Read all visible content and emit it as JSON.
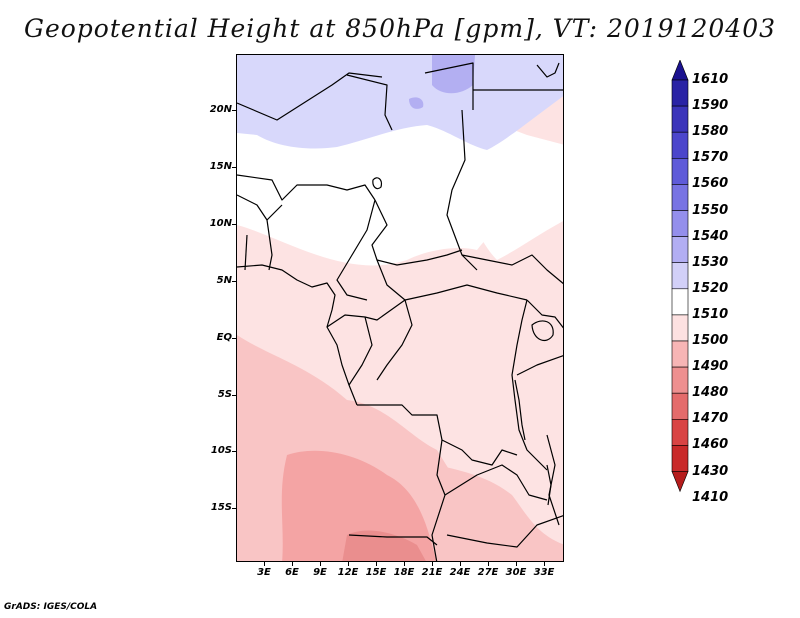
{
  "title": "Geopotential Height at 850hPa [gpm], VT: 2019120403",
  "footer": "GrADS: IGES/COLA",
  "map": {
    "latitude_labels": [
      "20N",
      "15N",
      "10N",
      "5N",
      "EQ",
      "5S",
      "10S",
      "15S"
    ],
    "longitude_labels": [
      "3E",
      "6E",
      "9E",
      "12E",
      "15E",
      "18E",
      "21E",
      "24E",
      "27E",
      "30E",
      "33E"
    ]
  },
  "legend": {
    "levels": [
      "1610",
      "1590",
      "1580",
      "1570",
      "1560",
      "1550",
      "1540",
      "1530",
      "1520",
      "1510",
      "1500",
      "1490",
      "1480",
      "1470",
      "1460",
      "1430",
      "1410"
    ],
    "colors": [
      "#1b128f",
      "#2a23a5",
      "#3b34ba",
      "#4c46cc",
      "#5f5bd9",
      "#7873e3",
      "#948fec",
      "#b2aef3",
      "#d2d0f8",
      "#ffffff",
      "#fde1e1",
      "#f7b5b5",
      "#ee9090",
      "#e46b6b",
      "#d94444",
      "#c92a2a",
      "#b51c1c"
    ]
  },
  "colors": {
    "blue_high": "#d8d8fb",
    "blue_higher": "#b3aff2",
    "neutral": "#ffffff",
    "pink_light": "#fde3e3",
    "pink_mid": "#f9c5c5",
    "pink_deep": "#f4a4a4",
    "red_low": "#ea8e8e"
  }
}
